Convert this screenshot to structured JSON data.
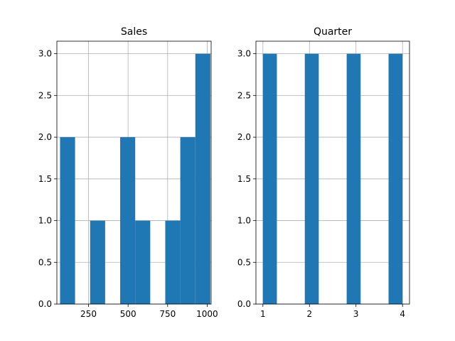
{
  "chart_data": [
    {
      "type": "bar",
      "title": "Sales",
      "xlim": [
        50,
        1025
      ],
      "ylim": [
        0,
        3.15
      ],
      "x_ticks": [
        250,
        500,
        750,
        1000
      ],
      "y_ticks": [
        0.0,
        0.5,
        1.0,
        1.5,
        2.0,
        2.5,
        3.0
      ],
      "y_tick_labels": [
        "0.0",
        "0.5",
        "1.0",
        "1.5",
        "2.0",
        "2.5",
        "3.0"
      ],
      "grid": true,
      "bin_width": 95,
      "bins": [
        {
          "start": 70,
          "count": 2
        },
        {
          "start": 165,
          "count": 0
        },
        {
          "start": 260,
          "count": 1
        },
        {
          "start": 355,
          "count": 0
        },
        {
          "start": 450,
          "count": 2
        },
        {
          "start": 545,
          "count": 1
        },
        {
          "start": 640,
          "count": 0
        },
        {
          "start": 735,
          "count": 1
        },
        {
          "start": 830,
          "count": 2
        },
        {
          "start": 925,
          "count": 3
        }
      ]
    },
    {
      "type": "bar",
      "title": "Quarter",
      "xlim": [
        0.85,
        4.15
      ],
      "ylim": [
        0,
        3.15
      ],
      "x_ticks": [
        1,
        2,
        3,
        4
      ],
      "y_ticks": [
        0.0,
        0.5,
        1.0,
        1.5,
        2.0,
        2.5,
        3.0
      ],
      "y_tick_labels": [
        "0.0",
        "0.5",
        "1.0",
        "1.5",
        "2.0",
        "2.5",
        "3.0"
      ],
      "grid": true,
      "bin_width": 0.3,
      "bins": [
        {
          "start": 1.0,
          "count": 3
        },
        {
          "start": 1.3,
          "count": 0
        },
        {
          "start": 1.6,
          "count": 0
        },
        {
          "start": 1.9,
          "count": 3
        },
        {
          "start": 2.2,
          "count": 0
        },
        {
          "start": 2.5,
          "count": 0
        },
        {
          "start": 2.8,
          "count": 3
        },
        {
          "start": 3.1,
          "count": 0
        },
        {
          "start": 3.4,
          "count": 0
        },
        {
          "start": 3.7,
          "count": 3
        }
      ]
    }
  ],
  "colors": {
    "bar": "#1f77b4",
    "grid": "#b0b0b0",
    "axis": "#000000"
  }
}
